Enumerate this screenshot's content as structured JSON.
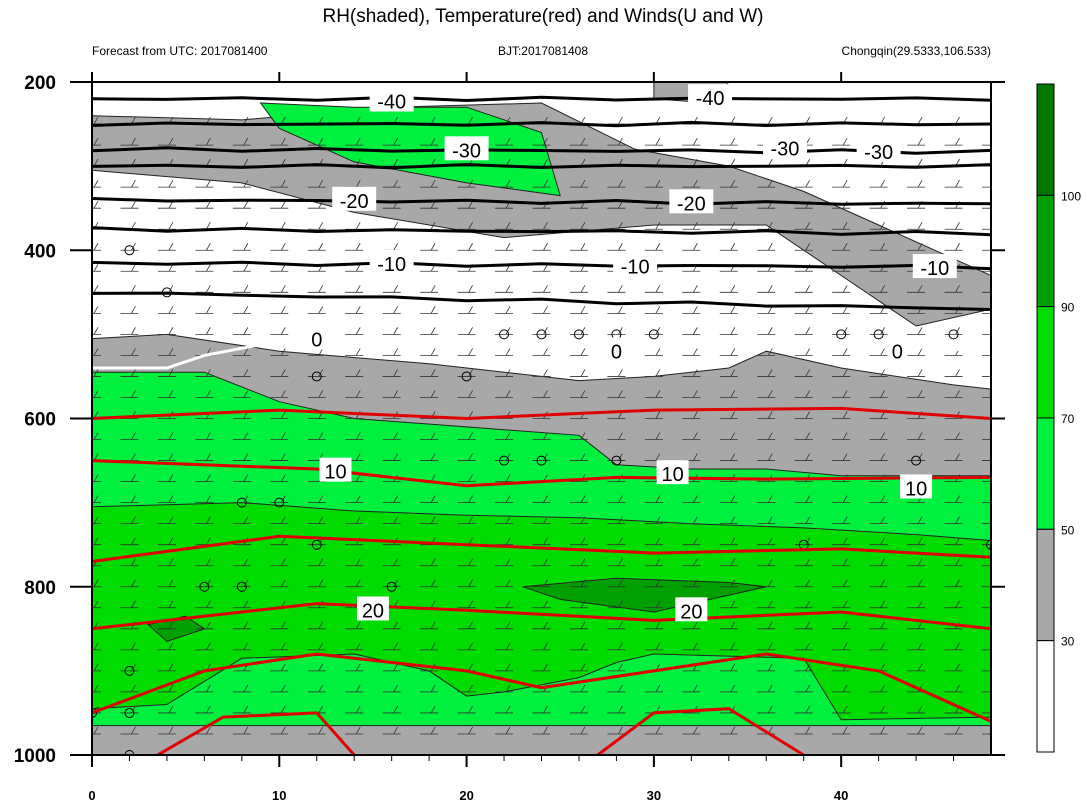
{
  "chart_data": {
    "type": "heatmap",
    "title": "RH(shaded), Temperature(red) and Winds(U and W)",
    "subtitle_left": "Forecast from UTC: 2017081400",
    "subtitle_center": "BJT:2017081408",
    "subtitle_right": "Chongqin(29.5333,106.533)",
    "xlim": [
      0,
      48
    ],
    "ylim": [
      1000,
      200
    ],
    "x_ticks": [
      0,
      10,
      20,
      30,
      40
    ],
    "y_ticks": [
      200,
      400,
      600,
      800,
      1000
    ],
    "colorbar": {
      "levels": [
        "30",
        "50",
        "70",
        "90",
        "100"
      ],
      "bands": [
        {
          "from": 0,
          "to": 30,
          "color": "#ffffff"
        },
        {
          "from": 30,
          "to": 50,
          "color": "#a8a8a8"
        },
        {
          "from": 50,
          "to": 70,
          "color": "#00f040"
        },
        {
          "from": 70,
          "to": 90,
          "color": "#00dc00"
        },
        {
          "from": 90,
          "to": 100,
          "color": "#00a000"
        },
        {
          "from": 100,
          "to": 110,
          "color": "#007800"
        }
      ]
    },
    "rh_regions": [
      {
        "level": "gray",
        "points": [
          [
            0,
            240
          ],
          [
            8,
            245
          ],
          [
            16,
            230
          ],
          [
            24,
            225
          ],
          [
            29,
            280
          ],
          [
            34,
            300
          ],
          [
            38,
            330
          ],
          [
            42,
            370
          ],
          [
            46,
            410
          ],
          [
            48,
            430
          ],
          [
            48,
            470
          ],
          [
            44,
            490
          ],
          [
            40,
            430
          ],
          [
            36,
            370
          ],
          [
            30,
            370
          ],
          [
            22,
            385
          ],
          [
            14,
            355
          ],
          [
            8,
            320
          ],
          [
            0,
            305
          ]
        ]
      },
      {
        "level": "gray",
        "points": [
          [
            30,
            200
          ],
          [
            34,
            200
          ],
          [
            33,
            225
          ],
          [
            30,
            220
          ]
        ]
      },
      {
        "level": "gray",
        "points": [
          [
            0,
            505
          ],
          [
            4,
            500
          ],
          [
            10,
            520
          ],
          [
            18,
            535
          ],
          [
            26,
            555
          ],
          [
            30,
            550
          ],
          [
            34,
            540
          ],
          [
            36,
            520
          ],
          [
            40,
            540
          ],
          [
            46,
            560
          ],
          [
            48,
            565
          ],
          [
            48,
            1000
          ],
          [
            0,
            1000
          ]
        ]
      },
      {
        "level": "gray",
        "points": [
          [
            0,
            950
          ],
          [
            48,
            950
          ],
          [
            48,
            1000
          ],
          [
            0,
            1000
          ]
        ]
      },
      {
        "level": "50",
        "points": [
          [
            0,
            545
          ],
          [
            6,
            545
          ],
          [
            10,
            580
          ],
          [
            14,
            600
          ],
          [
            20,
            610
          ],
          [
            26,
            620
          ],
          [
            28,
            655
          ],
          [
            32,
            660
          ],
          [
            36,
            660
          ],
          [
            40,
            668
          ],
          [
            48,
            668
          ],
          [
            48,
            965
          ],
          [
            0,
            965
          ]
        ]
      },
      {
        "level": "50",
        "points": [
          [
            9,
            225
          ],
          [
            14,
            230
          ],
          [
            20,
            230
          ],
          [
            24,
            260
          ],
          [
            25,
            335
          ],
          [
            20,
            320
          ],
          [
            14,
            295
          ],
          [
            10,
            255
          ]
        ]
      },
      {
        "level": "70",
        "points": [
          [
            0,
            705
          ],
          [
            8,
            700
          ],
          [
            14,
            710
          ],
          [
            20,
            715
          ],
          [
            26,
            718
          ],
          [
            32,
            725
          ],
          [
            38,
            730
          ],
          [
            44,
            738
          ],
          [
            48,
            745
          ],
          [
            48,
            955
          ],
          [
            40,
            958
          ],
          [
            38,
            885
          ],
          [
            30,
            880
          ],
          [
            28,
            890
          ],
          [
            26,
            908
          ],
          [
            22,
            925
          ],
          [
            20,
            930
          ],
          [
            18,
            900
          ],
          [
            14,
            880
          ],
          [
            8,
            885
          ],
          [
            4,
            940
          ],
          [
            0,
            945
          ]
        ]
      },
      {
        "level": "90",
        "points": [
          [
            23,
            800
          ],
          [
            28,
            790
          ],
          [
            34,
            795
          ],
          [
            36,
            800
          ],
          [
            30,
            830
          ],
          [
            25,
            815
          ]
        ]
      },
      {
        "level": "90",
        "points": [
          [
            3,
            845
          ],
          [
            5,
            835
          ],
          [
            6,
            850
          ],
          [
            4,
            865
          ]
        ]
      }
    ],
    "isotherms_black": [
      {
        "label": "-40",
        "y_left": 220,
        "y_right": 220,
        "label_x": 16,
        "label2_x": 33
      },
      {
        "label": "",
        "y_left": 250,
        "y_right": 250
      },
      {
        "label": "-30",
        "y_left": 280,
        "y_right": 283,
        "label_x": 20,
        "label2_x": 37,
        "label3_x": 42
      },
      {
        "label": "",
        "y_left": 300,
        "y_right": 300
      },
      {
        "label": "-20",
        "y_left": 340,
        "y_right": 345,
        "label_x": 14,
        "label2_x": 32
      },
      {
        "label": "",
        "y_left": 375,
        "y_right": 380
      },
      {
        "label": "-10",
        "y_left": 415,
        "y_right": 420,
        "label_x": 16,
        "label2_x": 29,
        "label3_x": 45
      },
      {
        "label": "",
        "y_left": 450,
        "y_right": 470
      }
    ],
    "zero_line": {
      "label": "0",
      "label_positions": [
        [
          12,
          505
        ],
        [
          28,
          519
        ],
        [
          43,
          519
        ]
      ]
    },
    "isotherms_red": [
      {
        "label": "",
        "points": [
          [
            0,
            600
          ],
          [
            10,
            590
          ],
          [
            20,
            600
          ],
          [
            30,
            590
          ],
          [
            40,
            588
          ],
          [
            48,
            600
          ]
        ]
      },
      {
        "label": "10",
        "points": [
          [
            0,
            650
          ],
          [
            12,
            660
          ],
          [
            20,
            680
          ],
          [
            28,
            670
          ],
          [
            36,
            672
          ],
          [
            48,
            670
          ]
        ],
        "label_at": [
          13,
          662
        ]
      },
      {
        "label": "",
        "points": [
          [
            0,
            770
          ],
          [
            10,
            740
          ],
          [
            20,
            750
          ],
          [
            30,
            760
          ],
          [
            40,
            755
          ],
          [
            48,
            765
          ]
        ]
      },
      {
        "label": "20",
        "points": [
          [
            0,
            850
          ],
          [
            12,
            820
          ],
          [
            20,
            828
          ],
          [
            30,
            840
          ],
          [
            40,
            830
          ],
          [
            48,
            850
          ]
        ],
        "label_at": [
          15,
          827
        ]
      },
      {
        "label": "",
        "points": [
          [
            0,
            950
          ],
          [
            6,
            900
          ],
          [
            12,
            880
          ],
          [
            20,
            900
          ],
          [
            24,
            920
          ],
          [
            30,
            900
          ],
          [
            36,
            880
          ],
          [
            42,
            900
          ],
          [
            48,
            960
          ]
        ]
      }
    ],
    "red_labels": [
      {
        "text": "10",
        "x": 13,
        "y": 662
      },
      {
        "text": "10",
        "x": 31,
        "y": 665
      },
      {
        "text": "10",
        "x": 44,
        "y": 682
      },
      {
        "text": "20",
        "x": 15,
        "y": 827
      },
      {
        "text": "20",
        "x": 32,
        "y": 828
      }
    ],
    "black_labels": [
      {
        "text": "-40",
        "x": 16,
        "y": 222
      },
      {
        "text": "-40",
        "x": 33,
        "y": 218
      },
      {
        "text": "-30",
        "x": 20,
        "y": 280
      },
      {
        "text": "-30",
        "x": 37,
        "y": 278
      },
      {
        "text": "-30",
        "x": 42,
        "y": 282
      },
      {
        "text": "-20",
        "x": 14,
        "y": 340
      },
      {
        "text": "-20",
        "x": 32,
        "y": 343
      },
      {
        "text": "-10",
        "x": 16,
        "y": 415
      },
      {
        "text": "-10",
        "x": 29,
        "y": 418
      },
      {
        "text": "-10",
        "x": 45,
        "y": 420
      },
      {
        "text": "0",
        "x": 12,
        "y": 505
      },
      {
        "text": "0",
        "x": 28,
        "y": 519
      },
      {
        "text": "0",
        "x": 43,
        "y": 519
      }
    ],
    "wind_levels": [
      250,
      275,
      300,
      325,
      350,
      375,
      400,
      425,
      450,
      475,
      500,
      525,
      550,
      575,
      600,
      625,
      650,
      675,
      700,
      725,
      750,
      775,
      800,
      825,
      850,
      875,
      900,
      925,
      950,
      975
    ],
    "wind_times": [
      0,
      2,
      4,
      6,
      8,
      10,
      12,
      14,
      16,
      18,
      20,
      22,
      24,
      26,
      28,
      30,
      32,
      34,
      36,
      38,
      40,
      42,
      44,
      46,
      48
    ],
    "calm_points": [
      [
        2,
        400
      ],
      [
        4,
        450
      ],
      [
        22,
        500
      ],
      [
        24,
        500
      ],
      [
        26,
        500
      ],
      [
        28,
        500
      ],
      [
        30,
        500
      ],
      [
        40,
        500
      ],
      [
        42,
        500
      ],
      [
        46,
        500
      ],
      [
        12,
        550
      ],
      [
        20,
        550
      ],
      [
        22,
        650
      ],
      [
        24,
        650
      ],
      [
        28,
        650
      ],
      [
        44,
        650
      ],
      [
        8,
        700
      ],
      [
        10,
        700
      ],
      [
        12,
        750
      ],
      [
        38,
        750
      ],
      [
        48,
        750
      ],
      [
        6,
        800
      ],
      [
        8,
        800
      ],
      [
        16,
        800
      ],
      [
        2,
        900
      ],
      [
        0,
        950
      ],
      [
        2,
        950
      ],
      [
        2,
        1000
      ]
    ]
  }
}
